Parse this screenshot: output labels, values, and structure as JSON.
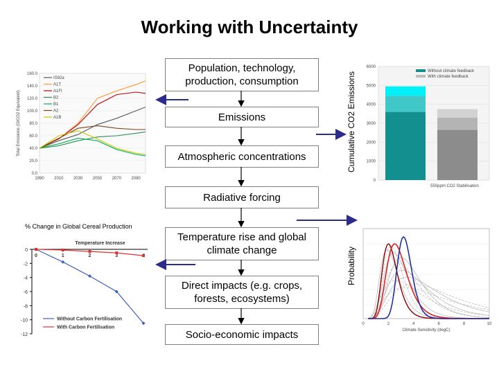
{
  "title": "Working with Uncertainty",
  "flow": {
    "steps": [
      "Population, technology, production, consumption",
      "Emissions",
      "Atmospheric concentrations",
      "Radiative forcing",
      "Temperature rise and global climate change",
      "Direct impacts (e.g. crops, forests, ecosystems)",
      "Socio-economic impacts"
    ]
  },
  "side_labels": {
    "cumulative": "Cumulative CO2 Emissions",
    "probability": "Probability",
    "cereal": "% Change in Global Cereal Production"
  },
  "chart_data": [
    {
      "id": "emissions-scenarios",
      "type": "line",
      "ylabel": "Total Emissions (GtCO2 Equivalent)",
      "x": [
        1990,
        2010,
        2030,
        2050,
        2070,
        2090,
        2100
      ],
      "xticks": [
        "1990",
        "2010",
        "2030",
        "2050",
        "2070",
        "2090"
      ],
      "yticks": [
        "0.0",
        "20.0",
        "40.0",
        "60.0",
        "80.0",
        "100.0",
        "120.0",
        "140.0",
        "160.0"
      ],
      "ylim": [
        0,
        160
      ],
      "series": [
        {
          "name": "IS92a",
          "color": "#5a5a5a",
          "values": [
            40,
            52,
            62,
            78,
            88,
            100,
            106
          ]
        },
        {
          "name": "A1T",
          "color": "#ff9933",
          "values": [
            40,
            55,
            80,
            120,
            132,
            142,
            148
          ]
        },
        {
          "name": "A1FI",
          "color": "#c00000",
          "values": [
            40,
            55,
            78,
            110,
            126,
            130,
            128
          ]
        },
        {
          "name": "B2",
          "color": "#2e8b57",
          "values": [
            40,
            44,
            52,
            58,
            60,
            64,
            66
          ]
        },
        {
          "name": "B1",
          "color": "#00b050",
          "values": [
            40,
            47,
            56,
            52,
            38,
            30,
            28
          ]
        },
        {
          "name": "A2",
          "color": "#7f3f1f",
          "values": [
            40,
            56,
            72,
            76,
            72,
            70,
            70
          ]
        },
        {
          "name": "A1B",
          "color": "#c8c800",
          "values": [
            40,
            60,
            68,
            55,
            40,
            32,
            30
          ]
        }
      ]
    },
    {
      "id": "cumulative-emissions",
      "type": "bar",
      "categories": [
        "Without climate feedback",
        "With climate feedback"
      ],
      "xlabel": "550ppm CO2 Stabilisation",
      "yticks": [
        "0",
        "1000",
        "2000",
        "3000",
        "4000",
        "5000",
        "6000"
      ],
      "ylim": [
        0,
        6000
      ],
      "legend": [
        "Without climate feedback",
        "With climate feedback"
      ],
      "stacks": [
        [
          {
            "value": 3600,
            "color": "#138f8f"
          },
          {
            "value": 850,
            "color": "#40c8c8"
          },
          {
            "value": 500,
            "color": "#00f0f8"
          }
        ],
        [
          {
            "value": 2650,
            "color": "#8c8c8c"
          },
          {
            "value": 650,
            "color": "#b4b4b4"
          },
          {
            "value": 450,
            "color": "#d2d2d2"
          }
        ]
      ]
    },
    {
      "id": "cereal-change",
      "type": "line",
      "title": "Temperature Increase",
      "xticks": [
        "0",
        "1",
        "2",
        "3",
        "4"
      ],
      "yticks": [
        "0",
        "-2",
        "-4",
        "-6",
        "-8",
        "-10",
        "-12"
      ],
      "x": [
        0,
        1,
        2,
        3,
        4
      ],
      "ylim": [
        -12,
        0
      ],
      "series": [
        {
          "name": "Without Carbon Fertilisation",
          "color": "#3f5fbf",
          "values": [
            0,
            -1.8,
            -3.8,
            -6.0,
            -10.5
          ]
        },
        {
          "name": "With Carbon Fertilisation",
          "color": "#e03030",
          "values": [
            0,
            -0.1,
            -0.3,
            -0.5,
            -0.9
          ]
        }
      ]
    },
    {
      "id": "climate-sensitivity",
      "type": "line",
      "xlabel": "Climate Sensitivity (degC)",
      "xticks": [
        "0",
        "2",
        "4",
        "6",
        "8",
        "10"
      ],
      "xlim": [
        0,
        10
      ]
    }
  ]
}
